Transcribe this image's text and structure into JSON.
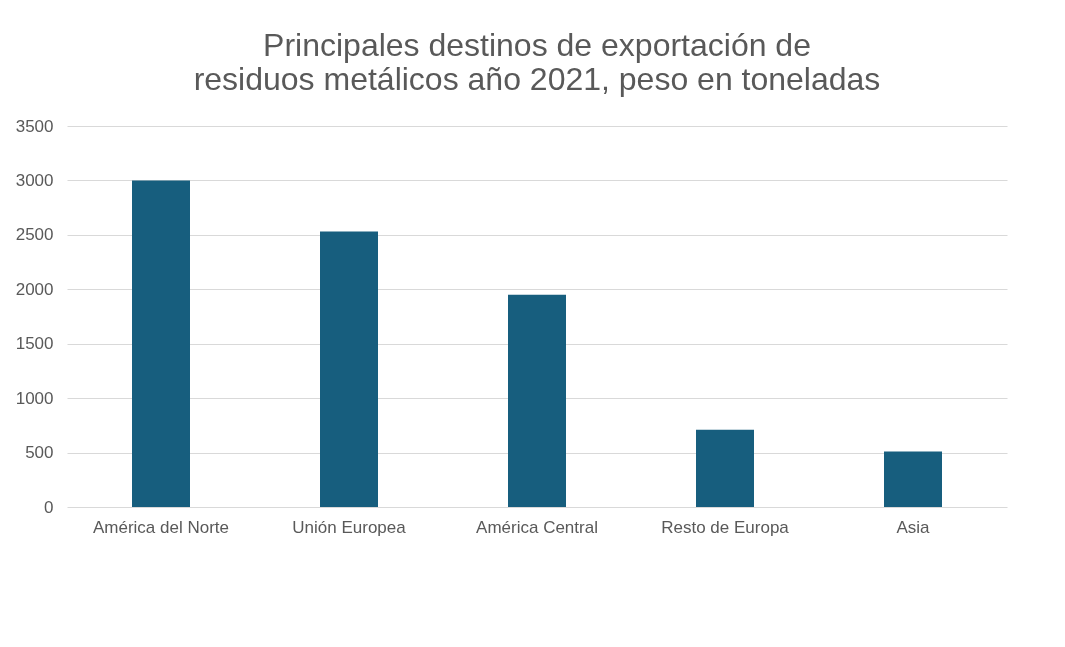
{
  "chart_data": {
    "type": "bar",
    "title": "Principales destinos de exportación de residuos metálicos año 2021, peso en toneladas",
    "categories": [
      "América del Norte",
      "Unión Europea",
      "América Central",
      "Resto de Europa",
      "Asia"
    ],
    "values": [
      3000,
      2530,
      1950,
      710,
      510
    ],
    "color": "#175e7e",
    "ylim": [
      0,
      3500
    ],
    "yticks": [
      0,
      500,
      1000,
      1500,
      2000,
      2500,
      3000,
      3500
    ],
    "grid": "y"
  }
}
